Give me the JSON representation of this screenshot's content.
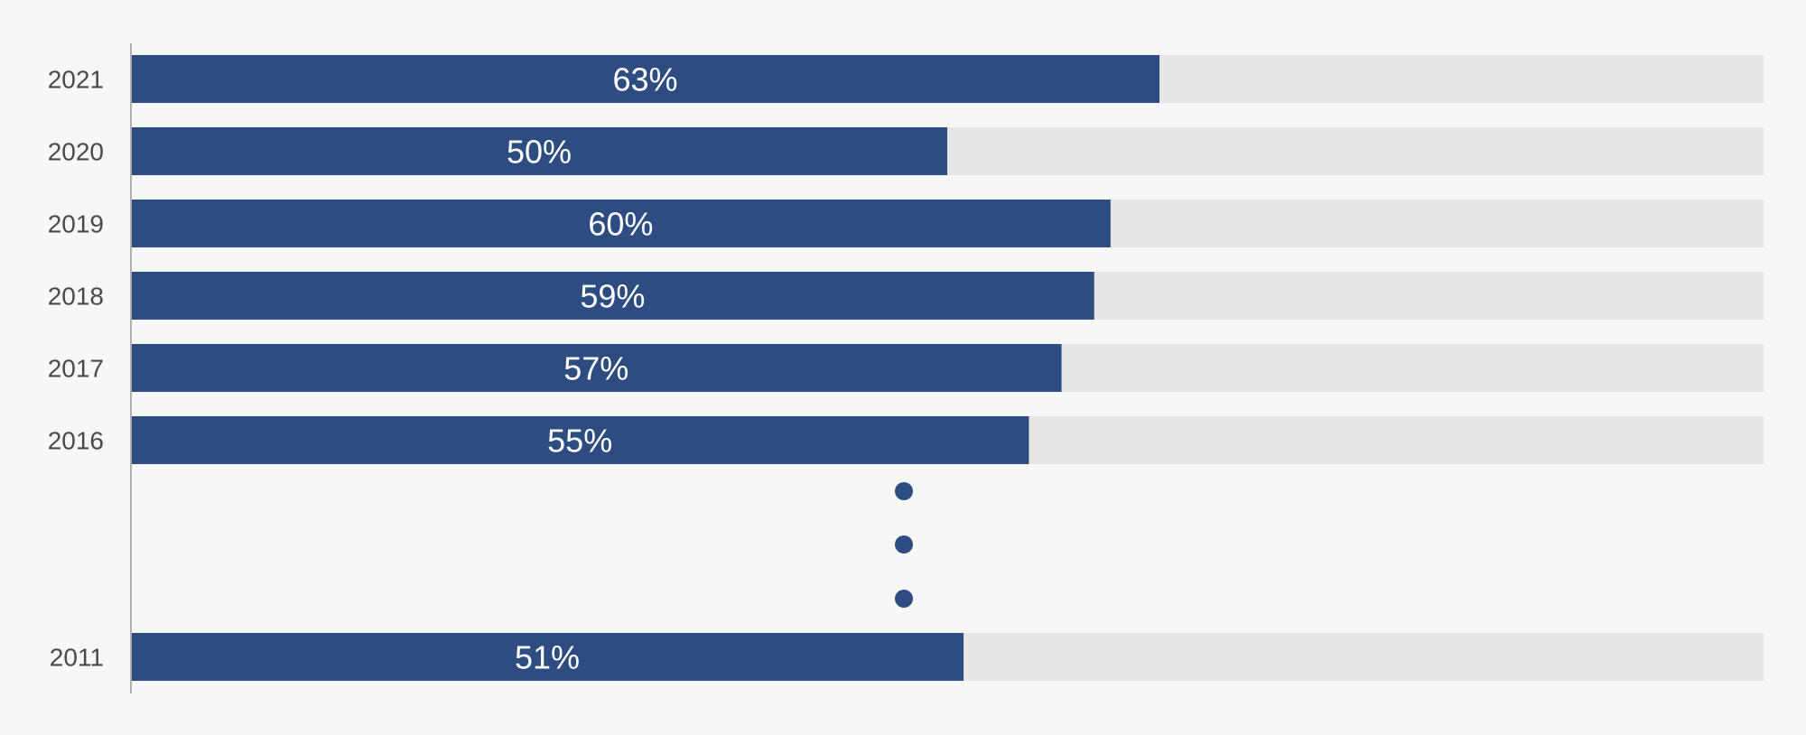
{
  "chart_data": {
    "type": "bar",
    "orientation": "horizontal",
    "categories": [
      "2021",
      "2020",
      "2019",
      "2018",
      "2017",
      "2016",
      "2011"
    ],
    "values": [
      63,
      50,
      60,
      59,
      57,
      55,
      51
    ],
    "value_labels": [
      "63%",
      "50%",
      "60%",
      "59%",
      "57%",
      "55%",
      "51%"
    ],
    "xlim": [
      0,
      100
    ],
    "gap_after_category": "2016",
    "gap_marker": "vertical ellipsis",
    "colors": {
      "bar": "#2d4d82",
      "track": "#e6e6e6",
      "axis": "#b0b0b0",
      "label": "#4a4a4a",
      "dots": "#2d4d82"
    }
  }
}
